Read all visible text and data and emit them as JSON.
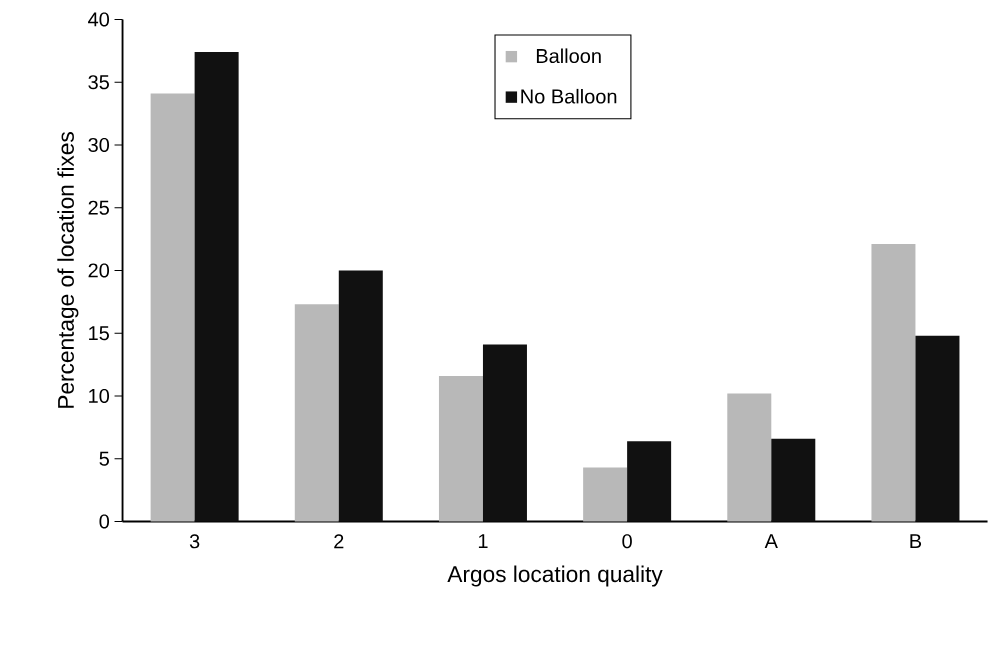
{
  "chart_data": {
    "type": "bar",
    "xlabel": "Argos location quality",
    "ylabel": "Percentage of location fixes",
    "categories": [
      "3",
      "2",
      "1",
      "0",
      "A",
      "B"
    ],
    "series": [
      {
        "name": "Balloon",
        "color": "#b8b8b8",
        "values": [
          34.1,
          17.3,
          11.6,
          4.3,
          10.2,
          22.1
        ]
      },
      {
        "name": "No Balloon",
        "color": "#111111",
        "values": [
          37.4,
          20.0,
          14.1,
          6.4,
          6.6,
          14.8
        ]
      }
    ],
    "ylim": [
      0,
      40
    ],
    "yticks": [
      0,
      5,
      10,
      15,
      20,
      25,
      30,
      35,
      40
    ],
    "legend": "top",
    "grid": false
  }
}
